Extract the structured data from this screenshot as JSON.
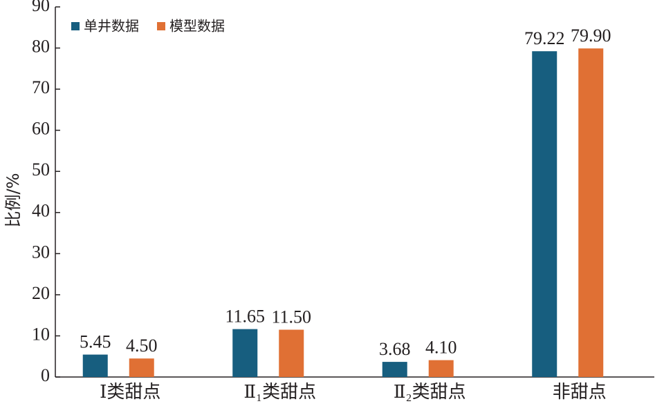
{
  "chart_data": {
    "type": "bar",
    "y_label": "比例/%",
    "categories": [
      "Ⅰ类甜点",
      "Ⅱ₁类甜点",
      "Ⅱ₂类甜点",
      "非甜点"
    ],
    "series": [
      {
        "name": "单井数据",
        "color": "#175e7f",
        "values": [
          5.45,
          11.65,
          3.68,
          79.22
        ],
        "value_labels": [
          "5.45",
          "11.65",
          "3.68",
          "79.22"
        ]
      },
      {
        "name": "模型数据",
        "color": "#e07034",
        "values": [
          4.5,
          11.5,
          4.1,
          79.9
        ],
        "value_labels": [
          "4.50",
          "11.50",
          "4.10",
          "79.90"
        ]
      }
    ],
    "ylim": [
      0,
      90
    ],
    "yticks": [
      0,
      10,
      20,
      30,
      40,
      50,
      60,
      70,
      80,
      90
    ],
    "legend": "upper left"
  }
}
